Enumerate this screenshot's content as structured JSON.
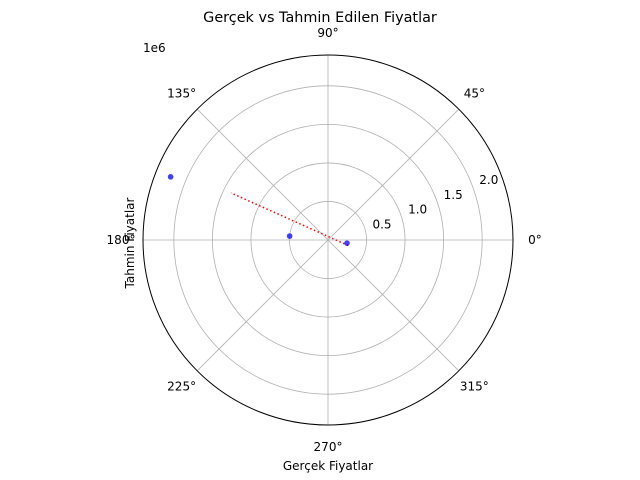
{
  "chart_data": {
    "type": "scatter",
    "projection": "polar",
    "title": "Gerçek vs Tahmin Edilen Fiyatlar",
    "xlabel": "Gerçek Fiyatlar",
    "ylabel": "Tahmin Fiyatlar",
    "scale_label": "1e6",
    "r_lim": [
      0,
      2.4
    ],
    "r_ticks": [
      0.5,
      1.0,
      1.5,
      2.0
    ],
    "r_tick_labels": [
      "0.5",
      "1.0",
      "1.5",
      "2.0"
    ],
    "theta_ticks_deg": [
      0,
      45,
      90,
      135,
      180,
      225,
      270,
      315
    ],
    "theta_tick_labels": [
      "0°",
      "45°",
      "90°",
      "135°",
      "180°",
      "225°",
      "270°",
      "315°"
    ],
    "grid": true,
    "points": [
      {
        "theta_rad": 2.76,
        "r": 2.2
      },
      {
        "theta_rad": 3.04,
        "r": 0.5
      },
      {
        "theta_rad": 6.12,
        "r": 0.25
      }
    ],
    "reference_line": {
      "style": "dotted",
      "color": "#ff0000",
      "points": [
        {
          "theta_rad": 6.02,
          "r": 0.27
        },
        {
          "theta_rad": 2.69,
          "r": 1.4
        }
      ]
    },
    "colors": {
      "points": "#0000ff",
      "grid": "#b0b0b0",
      "frame": "#000000"
    }
  }
}
